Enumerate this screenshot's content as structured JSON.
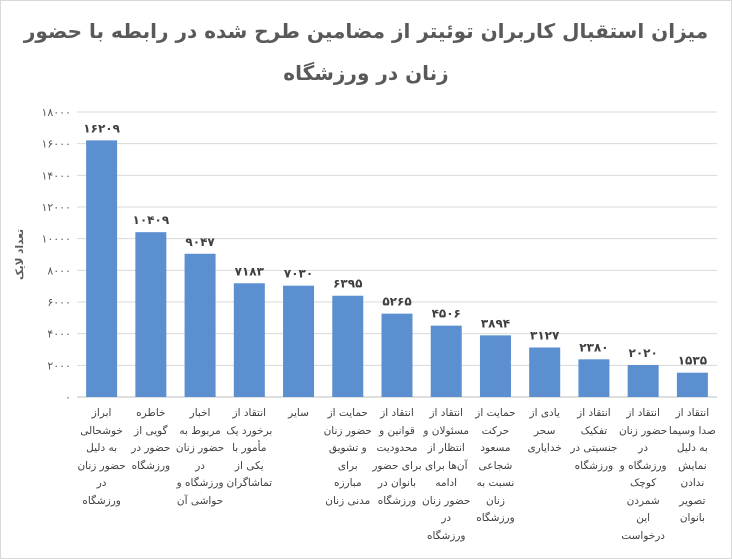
{
  "chart_data": {
    "type": "bar",
    "title_line1": "میزان استقبال کاربران توئیتر از مضامین طرح شده در رابطه با حضور",
    "title_line2": "زنان در ورزشگاه",
    "ylabel": "تعداد لایک",
    "xlabel": "",
    "ylim": [
      0,
      18000
    ],
    "yticks": [
      0,
      2000,
      4000,
      6000,
      8000,
      10000,
      12000,
      14000,
      16000,
      18000
    ],
    "ytick_labels": [
      "۰",
      "۲۰۰۰",
      "۴۰۰۰",
      "۶۰۰۰",
      "۸۰۰۰",
      "۱۰۰۰۰",
      "۱۲۰۰۰",
      "۱۴۰۰۰",
      "۱۶۰۰۰",
      "۱۸۰۰۰"
    ],
    "grid": true,
    "bar_color": "#5b8fd0",
    "categories": [
      "ابراز خوشحالی به دلیل حضور زنان در ورزشگاه",
      "خاطره گویی از حضور در ورزشگاه",
      "اخبار مربوط به حضور زنان در ورزشگاه و حواشی آن",
      "انتقاد از برخورد یک مأمور با یکی از تماشاگران",
      "سایر",
      "حمایت از حضور زنان و تشویق برای مبارزه مدنی زنان",
      "انتقاد از قوانین و محدودیت برای حضور بانوان در ورزشگاه",
      "انتقاد از مسئولان و انتظار از آن‌ها برای ادامه حضور زنان در ورزشگاه",
      "حمایت از حرکت مسعود شجاعی نسبت به زنان ورزشگاه",
      "یادی از سحر خدایاری",
      "انتقاد از تفکیک جنسیتی در ورزشگاه",
      "انتقاد از حضور زنان در ورزشگاه و کوچک شمردن این درخواست",
      "انتقاد از صدا وسیما به دلیل نمایش ندادن تصویر بانوان"
    ],
    "values": [
      16209,
      10409,
      9047,
      7183,
      7030,
      6395,
      5265,
      4506,
      3894,
      3127,
      2380,
      2020,
      1535
    ],
    "value_labels": [
      "۱۶۲۰۹",
      "۱۰۴۰۹",
      "۹۰۴۷",
      "۷۱۸۳",
      "۷۰۳۰",
      "۶۳۹۵",
      "۵۲۶۵",
      "۴۵۰۶",
      "۳۸۹۴",
      "۳۱۲۷",
      "۲۳۸۰",
      "۲۰۲۰",
      "۱۵۳۵"
    ]
  }
}
